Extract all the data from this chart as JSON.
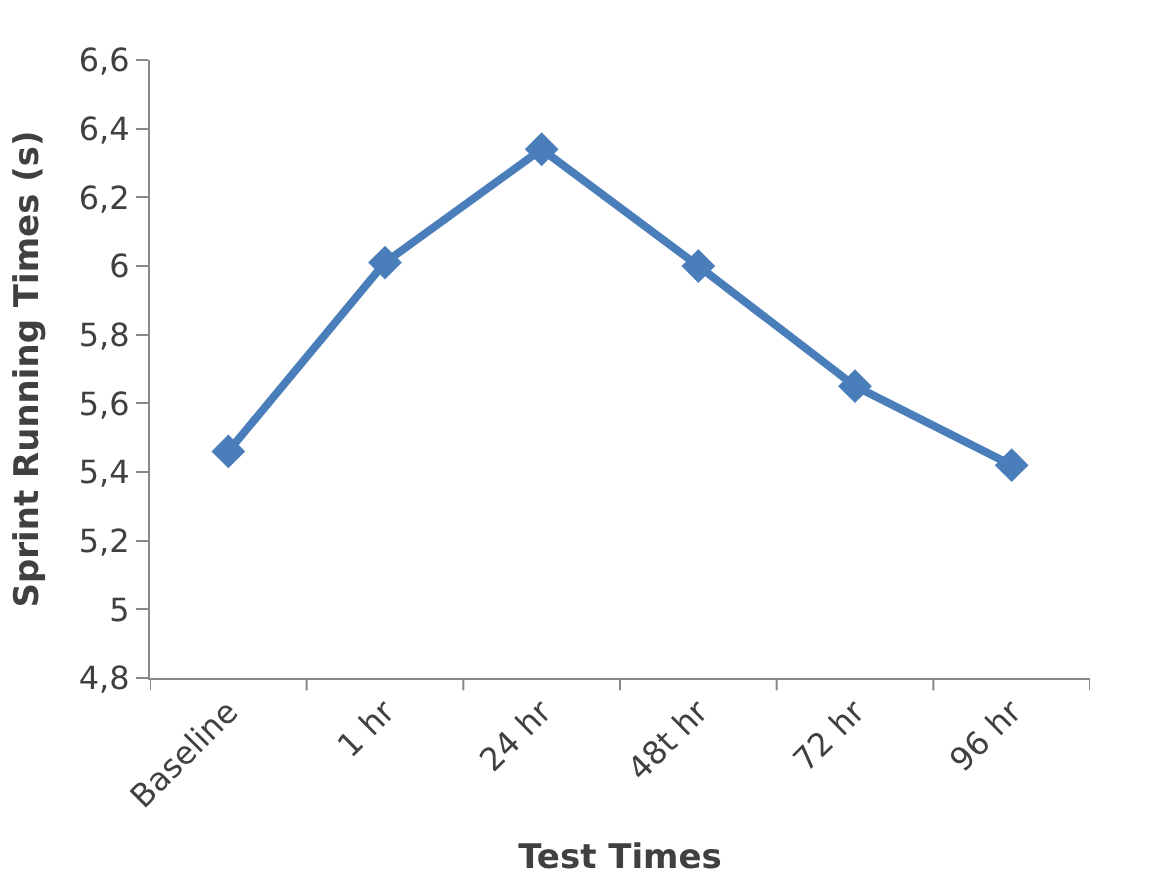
{
  "chart_data": {
    "type": "line",
    "xlabel": "Test Times",
    "ylabel": "Sprint Running Times (s)",
    "categories": [
      "Baseline",
      "1 hr",
      "24 hr",
      "48t hr",
      "72 hr",
      "96 hr"
    ],
    "series": [
      {
        "color": "#4a7ebb",
        "values": [
          5.46,
          6.01,
          6.34,
          6.0,
          5.65,
          5.42
        ]
      }
    ],
    "ylim": [
      4.8,
      6.6
    ],
    "yticks": [
      {
        "value": 4.8,
        "label": "4,8"
      },
      5,
      {
        "value": 5.2,
        "label": "5,2"
      },
      {
        "value": 5.4,
        "label": "5,4"
      },
      {
        "value": 5.6,
        "label": "5,6"
      },
      {
        "value": 5.8,
        "label": "5,8"
      },
      6,
      {
        "value": 6.2,
        "label": "6,2"
      },
      {
        "value": 6.4,
        "label": "6,4"
      },
      {
        "value": 6.6,
        "label": "6,6"
      }
    ],
    "grid": false,
    "legend": false,
    "marker": "diamond",
    "line_style": "solid"
  }
}
